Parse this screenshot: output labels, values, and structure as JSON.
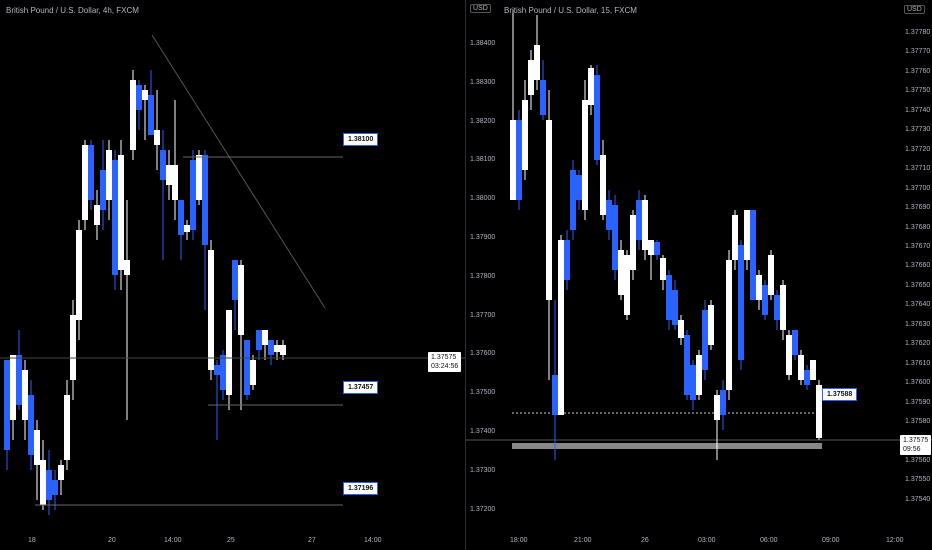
{
  "left_chart": {
    "title": "British Pound / U.S. Dollar, 4h, FXCM",
    "current_price": "1.37575",
    "countdown": "03:24:56",
    "x_labels": [
      "18",
      "20",
      "14:00",
      "25",
      "27",
      "14:00"
    ],
    "callouts": [
      "1.38100",
      "1.37457",
      "1.37196"
    ]
  },
  "right_chart": {
    "title": "British Pound / U.S. Dollar, 15, FXCM",
    "scale_left_label": "USD",
    "scale_right_label": "USD",
    "current_price": "1.37575",
    "countdown": "09:56",
    "callout": "1.37588",
    "left_axis_labels": [
      "1.38400",
      "1.38300",
      "1.38200",
      "1.38100",
      "1.38000",
      "1.37900",
      "1.37800",
      "1.37700",
      "1.37600",
      "1.37500",
      "1.37400",
      "1.37300",
      "1.37200"
    ],
    "right_axis_labels": [
      "1.37780",
      "1.37770",
      "1.37760",
      "1.37750",
      "1.37740",
      "1.37730",
      "1.37720",
      "1.37710",
      "1.37700",
      "1.37690",
      "1.37680",
      "1.37670",
      "1.37660",
      "1.37650",
      "1.37640",
      "1.37630",
      "1.37620",
      "1.37610",
      "1.37600",
      "1.37590",
      "1.37580",
      "1.37570",
      "1.37560",
      "1.37550",
      "1.37540"
    ],
    "x_labels": [
      "18:00",
      "21:00",
      "26",
      "03:00",
      "06:00",
      "09:00",
      "12:00"
    ]
  },
  "colors": {
    "bull": "#ffffff",
    "bear": "#2962ff",
    "grid_text": "#b2b5be",
    "background": "#000000"
  }
}
